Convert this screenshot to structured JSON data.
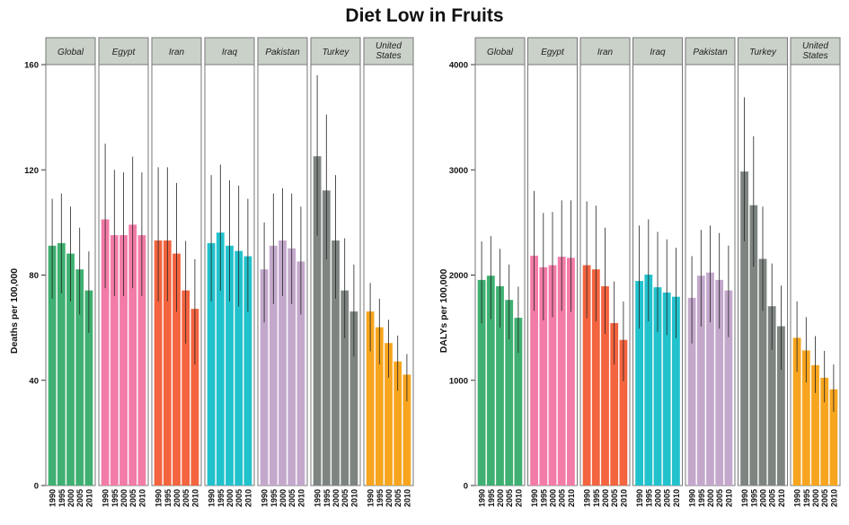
{
  "title": "Diet Low in Fruits",
  "colors": {
    "panel_header_bg": "#c9d1c9",
    "panel_border": "#777777",
    "error_bar": "#222222",
    "countries": {
      "Global": "#3fb071",
      "Egypt": "#f27ba7",
      "Iran": "#f3643f",
      "Iraq": "#22c2cc",
      "Pakistan": "#c4a8cc",
      "Turkey": "#7e8581",
      "United States": "#f7a51f"
    }
  },
  "chart_data": [
    {
      "type": "bar",
      "title": "Diet Low in Fruits",
      "ylabel": "Deaths per 100,000",
      "xlabel": "",
      "ylim": [
        0,
        160
      ],
      "yticks": [
        0,
        40,
        80,
        120,
        160
      ],
      "year_labels": [
        "1990",
        "1995",
        "2000",
        "2005",
        "2010"
      ],
      "panels": [
        {
          "name": "Global",
          "values": [
            91,
            92,
            88,
            82,
            74
          ],
          "lower": [
            71,
            73,
            70,
            65,
            58
          ],
          "upper": [
            109,
            111,
            106,
            98,
            89
          ]
        },
        {
          "name": "Egypt",
          "values": [
            101,
            95,
            95,
            99,
            95
          ],
          "lower": [
            75,
            72,
            72,
            75,
            72
          ],
          "upper": [
            130,
            120,
            119,
            125,
            119
          ]
        },
        {
          "name": "Iran",
          "values": [
            93,
            93,
            88,
            74,
            67
          ],
          "lower": [
            70,
            70,
            66,
            54,
            46
          ],
          "upper": [
            121,
            121,
            115,
            93,
            86
          ]
        },
        {
          "name": "Iraq",
          "values": [
            92,
            96,
            91,
            89,
            87
          ],
          "lower": [
            70,
            74,
            70,
            68,
            66
          ],
          "upper": [
            118,
            122,
            116,
            114,
            109
          ]
        },
        {
          "name": "Pakistan",
          "values": [
            82,
            91,
            93,
            90,
            85
          ],
          "lower": [
            62,
            69,
            72,
            69,
            65
          ],
          "upper": [
            100,
            111,
            113,
            111,
            106
          ]
        },
        {
          "name": "Turkey",
          "values": [
            125,
            112,
            93,
            74,
            66
          ],
          "lower": [
            95,
            86,
            71,
            56,
            49
          ],
          "upper": [
            156,
            141,
            118,
            94,
            84
          ]
        },
        {
          "name": "United States",
          "values": [
            66,
            60,
            54,
            47,
            42
          ],
          "lower": [
            51,
            46,
            41,
            36,
            32
          ],
          "upper": [
            77,
            71,
            63,
            57,
            50
          ]
        }
      ]
    },
    {
      "type": "bar",
      "title": "Diet Low in Fruits",
      "ylabel": "DALYs per 100,000",
      "xlabel": "",
      "ylim": [
        0,
        4000
      ],
      "yticks": [
        0,
        1000,
        2000,
        3000,
        4000
      ],
      "year_labels": [
        "1990",
        "1995",
        "2000",
        "2005",
        "2010"
      ],
      "panels": [
        {
          "name": "Global",
          "values": [
            1950,
            1990,
            1890,
            1760,
            1590
          ],
          "lower": [
            1540,
            1580,
            1500,
            1390,
            1260
          ],
          "upper": [
            2320,
            2370,
            2250,
            2100,
            1890
          ]
        },
        {
          "name": "Egypt",
          "values": [
            2180,
            2070,
            2090,
            2170,
            2160
          ],
          "lower": [
            1660,
            1570,
            1600,
            1660,
            1650
          ],
          "upper": [
            2800,
            2590,
            2600,
            2710,
            2710
          ]
        },
        {
          "name": "Iran",
          "values": [
            2090,
            2050,
            1890,
            1540,
            1380
          ],
          "lower": [
            1590,
            1560,
            1440,
            1150,
            990
          ],
          "upper": [
            2700,
            2660,
            2450,
            1940,
            1750
          ]
        },
        {
          "name": "Iraq",
          "values": [
            1940,
            2000,
            1880,
            1830,
            1790
          ],
          "lower": [
            1490,
            1560,
            1460,
            1430,
            1400
          ],
          "upper": [
            2470,
            2530,
            2410,
            2340,
            2260
          ]
        },
        {
          "name": "Pakistan",
          "values": [
            1780,
            1990,
            2020,
            1950,
            1850
          ],
          "lower": [
            1350,
            1510,
            1550,
            1490,
            1410
          ],
          "upper": [
            2180,
            2430,
            2470,
            2400,
            2280
          ]
        },
        {
          "name": "Turkey",
          "values": [
            2980,
            2660,
            2150,
            1700,
            1510
          ],
          "lower": [
            2320,
            2080,
            1660,
            1290,
            1100
          ],
          "upper": [
            3690,
            3320,
            2650,
            2110,
            1900
          ]
        },
        {
          "name": "United States",
          "values": [
            1400,
            1280,
            1140,
            1020,
            910
          ],
          "lower": [
            1080,
            980,
            880,
            790,
            700
          ],
          "upper": [
            1750,
            1600,
            1420,
            1280,
            1150
          ]
        }
      ]
    }
  ],
  "panel_labels": {
    "Global": [
      "Global"
    ],
    "Egypt": [
      "Egypt"
    ],
    "Iran": [
      "Iran"
    ],
    "Iraq": [
      "Iraq"
    ],
    "Pakistan": [
      "Pakistan"
    ],
    "Turkey": [
      "Turkey"
    ],
    "United States": [
      "United",
      "States"
    ]
  }
}
